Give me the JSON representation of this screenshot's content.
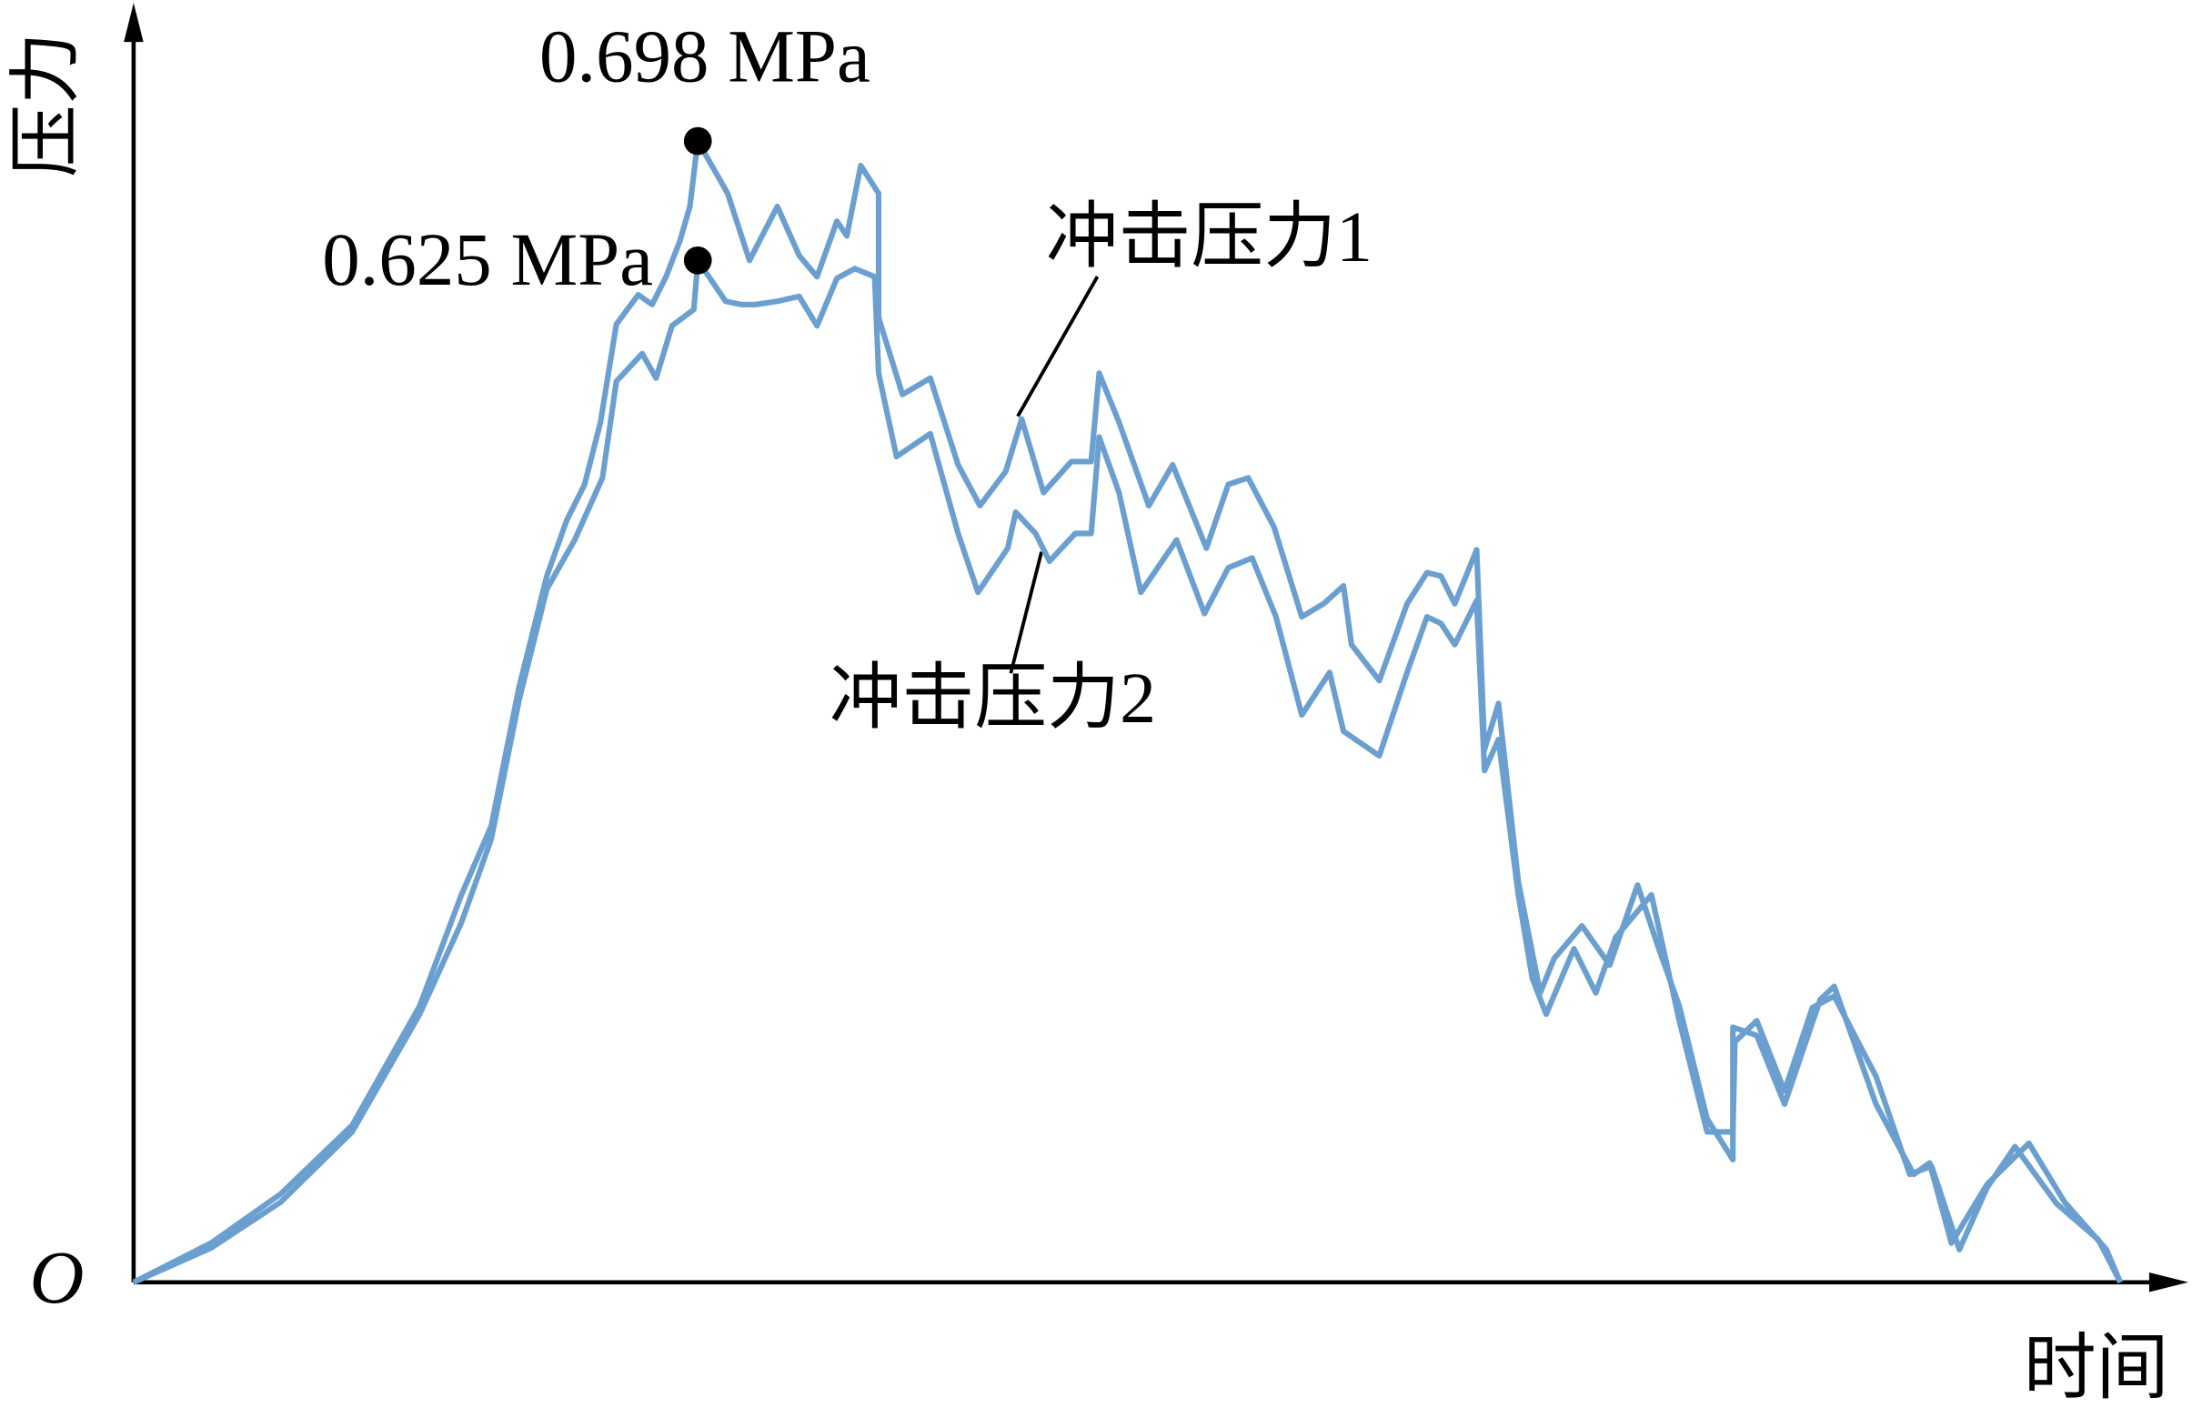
{
  "chart_data": {
    "type": "line",
    "y_label": "压力",
    "x_label": "时间",
    "origin_label": "O",
    "xlim": [
      0,
      103
    ],
    "ylim": [
      0,
      0.78
    ],
    "series": [
      {
        "name": "冲击压力1",
        "color": "#6a9fd0",
        "x": [
          0,
          3.9,
          7.4,
          11.0,
          14.4,
          16.5,
          18.0,
          19.4,
          20.8,
          21.8,
          22.7,
          23.5,
          24.3,
          25.4,
          26.1,
          26.8,
          27.5,
          28.0,
          28.4,
          29.9,
          31.0,
          32.4,
          33.5,
          34.4,
          35.4,
          35.9,
          36.6,
          37.5,
          37.5,
          38.7,
          40.1,
          41.5,
          42.6,
          43.9,
          44.7,
          45.8,
          47.2,
          48.2,
          48.6,
          49.6,
          51.1,
          52.3,
          54.0,
          55.1,
          56.1,
          57.4,
          58.8,
          59.9,
          60.9,
          61.3,
          62.7,
          64.1,
          65.1,
          65.8,
          66.5,
          67.6,
          68.0,
          68.7,
          69.7,
          70.8,
          71.5,
          72.9,
          74.3,
          75.7,
          76.8,
          77.8,
          79.2,
          80.5,
          80.5,
          81.7,
          83.1,
          84.9,
          85.6,
          87.7,
          89.6,
          90.4,
          91.5,
          93.3,
          95.4,
          97.2,
          99.3,
          100
        ],
        "values": [
          0,
          0.024,
          0.054,
          0.096,
          0.169,
          0.237,
          0.279,
          0.364,
          0.432,
          0.466,
          0.488,
          0.526,
          0.586,
          0.604,
          0.598,
          0.615,
          0.637,
          0.658,
          0.698,
          0.666,
          0.625,
          0.658,
          0.628,
          0.615,
          0.649,
          0.64,
          0.683,
          0.666,
          0.59,
          0.543,
          0.553,
          0.5,
          0.475,
          0.496,
          0.528,
          0.483,
          0.502,
          0.502,
          0.556,
          0.526,
          0.475,
          0.5,
          0.449,
          0.488,
          0.492,
          0.462,
          0.407,
          0.415,
          0.426,
          0.39,
          0.368,
          0.415,
          0.434,
          0.432,
          0.415,
          0.448,
          0.326,
          0.354,
          0.245,
          0.177,
          0.198,
          0.218,
          0.194,
          0.243,
          0.203,
          0.169,
          0.1,
          0.075,
          0.156,
          0.151,
          0.109,
          0.173,
          0.181,
          0.109,
          0.066,
          0.073,
          0.024,
          0.06,
          0.085,
          0.049,
          0.02,
          0
        ],
        "value_labels": [
          null,
          null,
          null,
          null,
          null,
          null,
          null,
          null,
          null,
          null,
          null,
          null,
          null,
          null,
          null,
          null,
          null,
          null,
          "0.698 MPa",
          null,
          null,
          null,
          null,
          null,
          null,
          null,
          null,
          null,
          null,
          null,
          null,
          null,
          null,
          null,
          null,
          null,
          null,
          null,
          null,
          null,
          null,
          null,
          null,
          null,
          null,
          null,
          null,
          null,
          null,
          null,
          null,
          null,
          null,
          null,
          null,
          null,
          null,
          null,
          null,
          null,
          null,
          null,
          null,
          null,
          null,
          null,
          null,
          null,
          null,
          null,
          null,
          null,
          null,
          null,
          null,
          null,
          null,
          null,
          null,
          null,
          null,
          null
        ]
      },
      {
        "name": "冲击压力2",
        "color": "#6a9fd0",
        "x": [
          0,
          3.9,
          7.4,
          11.0,
          14.4,
          16.5,
          18.0,
          19.4,
          20.8,
          22.2,
          23.6,
          24.3,
          25.6,
          26.3,
          27.1,
          28.2,
          28.4,
          29.8,
          30.6,
          31.3,
          32.4,
          33.5,
          34.4,
          35.4,
          36.3,
          37.3,
          37.5,
          38.4,
          40.1,
          41.5,
          42.5,
          44.0,
          44.4,
          45.4,
          46.1,
          47.4,
          48.2,
          48.6,
          49.6,
          50.7,
          52.5,
          53.9,
          55.1,
          56.3,
          57.5,
          58.8,
          60.2,
          60.9,
          62.7,
          64.1,
          65.1,
          65.8,
          66.5,
          67.6,
          68.0,
          68.7,
          69.7,
          70.4,
          71.1,
          72.5,
          73.6,
          74.6,
          76.4,
          77.8,
          79.2,
          80.5,
          80.6,
          81.7,
          83.1,
          84.5,
          85.6,
          87.7,
          89.4,
          90.5,
          91.9,
          93.3,
          94.7,
          96.8,
          98.9,
          100
        ],
        "values": [
          0,
          0.021,
          0.049,
          0.092,
          0.164,
          0.22,
          0.271,
          0.356,
          0.424,
          0.454,
          0.492,
          0.551,
          0.568,
          0.553,
          0.585,
          0.595,
          0.625,
          0.6,
          0.598,
          0.598,
          0.6,
          0.603,
          0.585,
          0.614,
          0.62,
          0.615,
          0.556,
          0.505,
          0.519,
          0.458,
          0.422,
          0.449,
          0.471,
          0.458,
          0.441,
          0.458,
          0.458,
          0.517,
          0.483,
          0.422,
          0.454,
          0.409,
          0.437,
          0.443,
          0.407,
          0.347,
          0.373,
          0.337,
          0.322,
          0.373,
          0.407,
          0.403,
          0.39,
          0.417,
          0.313,
          0.332,
          0.237,
          0.186,
          0.164,
          0.204,
          0.177,
          0.211,
          0.237,
          0.16,
          0.092,
          0.092,
          0.147,
          0.16,
          0.117,
          0.168,
          0.175,
          0.126,
          0.066,
          0.071,
          0.02,
          0.058,
          0.083,
          0.048,
          0.026,
          0
        ],
        "value_labels": [
          null,
          null,
          null,
          null,
          null,
          null,
          null,
          null,
          null,
          null,
          null,
          null,
          null,
          null,
          null,
          null,
          "0.625 MPa",
          null,
          null,
          null,
          null,
          null,
          null,
          null,
          null,
          null,
          null,
          null,
          null,
          null,
          null,
          null,
          null,
          null,
          null,
          null,
          null,
          null,
          null,
          null,
          null,
          null,
          null,
          null,
          null,
          null,
          null,
          null,
          null,
          null,
          null,
          null,
          null,
          null,
          null,
          null,
          null,
          null,
          null,
          null,
          null,
          null,
          null,
          null,
          null,
          null,
          null,
          null,
          null,
          null,
          null,
          null,
          null,
          null,
          null,
          null,
          null,
          null,
          null,
          null
        ]
      }
    ]
  }
}
